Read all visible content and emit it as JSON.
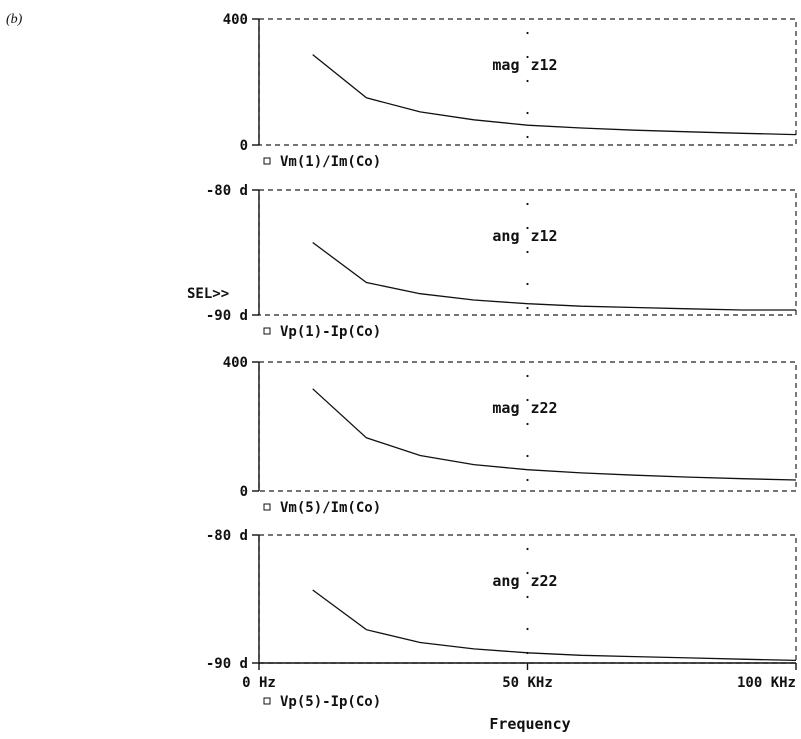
{
  "figure": {
    "panel_label": "(b)",
    "sel_marker": "SEL>>",
    "xlabel": "Frequency"
  },
  "chart_data": [
    {
      "type": "line",
      "title": "mag z12",
      "legend": "Vm(1)/Im(Co)",
      "x": [
        10,
        20,
        30,
        40,
        50,
        60,
        70,
        80,
        90,
        100
      ],
      "y": [
        287,
        150,
        105,
        80,
        63,
        54,
        47,
        42,
        37,
        33
      ],
      "xlim": [
        0,
        100
      ],
      "ylim": [
        0,
        400
      ],
      "x_unit": "KHz",
      "y_ticks": [
        "400",
        "0"
      ],
      "y_tick_values": [
        400,
        0
      ],
      "grid": false,
      "cursor_x": 50
    },
    {
      "type": "line",
      "title": "ang z12",
      "legend": "Vp(1)-Ip(Co)",
      "x": [
        10,
        20,
        30,
        40,
        50,
        60,
        70,
        80,
        90,
        100
      ],
      "y": [
        -84.2,
        -87.4,
        -88.3,
        -88.8,
        -89.1,
        -89.3,
        -89.4,
        -89.5,
        -89.6,
        -89.6
      ],
      "xlim": [
        0,
        100
      ],
      "ylim": [
        -90,
        -80
      ],
      "y_unit": "d",
      "y_ticks": [
        "-80 d",
        "-90 d"
      ],
      "y_tick_values": [
        -80,
        -90
      ],
      "grid": false,
      "cursor_x": 50
    },
    {
      "type": "line",
      "title": "mag z22",
      "legend": "Vm(5)/Im(Co)",
      "x": [
        10,
        20,
        30,
        40,
        50,
        60,
        70,
        80,
        90,
        100
      ],
      "y": [
        317,
        165,
        110,
        82,
        66,
        56,
        49,
        43,
        38,
        34
      ],
      "xlim": [
        0,
        100
      ],
      "ylim": [
        0,
        400
      ],
      "y_ticks": [
        "400",
        "0"
      ],
      "y_tick_values": [
        400,
        0
      ],
      "grid": false,
      "cursor_x": 50
    },
    {
      "type": "line",
      "title": "ang z22",
      "legend": "Vp(5)-Ip(Co)",
      "x": [
        10,
        20,
        30,
        40,
        50,
        60,
        70,
        80,
        90,
        100
      ],
      "y": [
        -84.3,
        -87.4,
        -88.4,
        -88.9,
        -89.2,
        -89.4,
        -89.5,
        -89.6,
        -89.7,
        -89.8
      ],
      "xlim": [
        0,
        100
      ],
      "ylim": [
        -90,
        -80
      ],
      "y_unit": "d",
      "y_ticks": [
        "-80 d",
        "-90 d"
      ],
      "y_tick_values": [
        -80,
        -90
      ],
      "x_ticks": [
        "0 Hz",
        "50 KHz",
        "100 KHz"
      ],
      "x_tick_values": [
        0,
        50,
        100
      ],
      "grid": false,
      "cursor_x": 50
    }
  ]
}
